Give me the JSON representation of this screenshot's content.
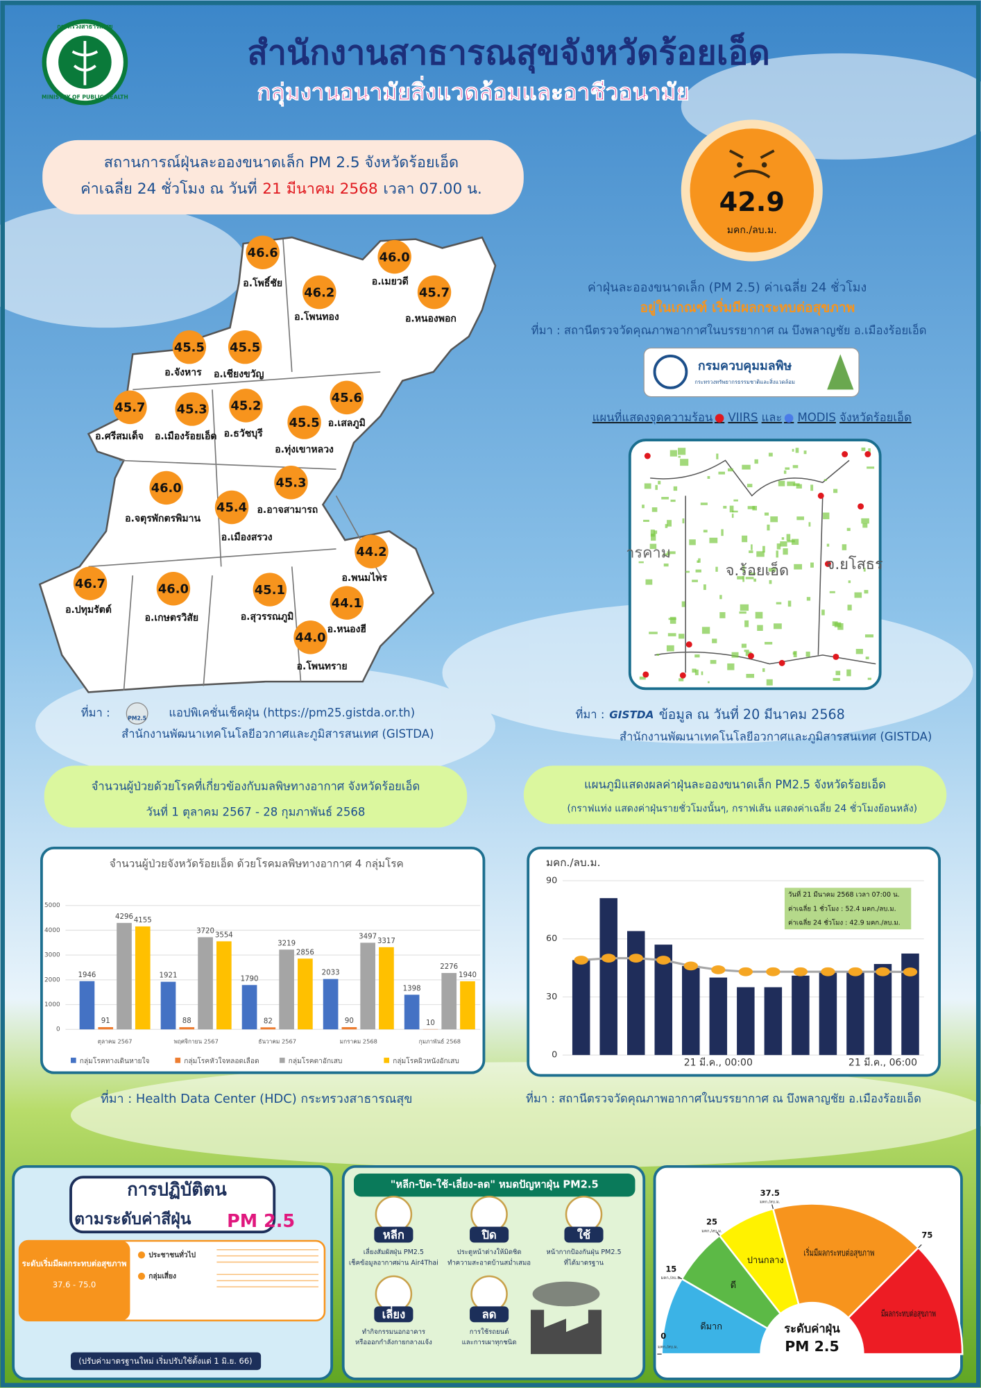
{
  "header": {
    "logo_top": "กระทรวงสาธารณสุข",
    "logo_bottom": "MINISTRY OF PUBLIC HEALTH",
    "title": "สำนักงานสาธารณสุขจังหวัดร้อยเอ็ด",
    "subtitle": "กลุ่มงานอนามัยสิ่งแวดล้อมและอาชีวอนามัย"
  },
  "situation": {
    "line1": "สถานการณ์ฝุ่นละอองขนาดเล็ก PM 2.5 จังหวัดร้อยเอ็ด",
    "line2": [
      "ค่าเฉลี่ย 24 ชั่วโมง ณ วันที่",
      "21 มีนาคม 2568",
      "เวลา 07.00 น."
    ]
  },
  "aqi": {
    "value": 42.9,
    "unit": "มคก./ลบ.ม.",
    "description": "ค่าฝุ่นละอองขนาดเล็ก (PM 2.5) ค่าเฉลี่ย 24 ชั่วโมง",
    "level": "อยู่ในเกณฑ์ เริ่มมีผลกระทบต่อสุขภาพ",
    "source": "ที่มา : สถานีตรวจวัดคุณภาพอากาศในบรรยากาศ ณ บึงพลาญชัย อ.เมืองร้อยเอ็ด",
    "agency": "กรมควบคุมมลพิษ",
    "agency_sub": "กระทรวงทรัพยากรธรรมชาติและสิ่งแวดล้อม"
  },
  "district_map": {
    "names": [
      "อ.โพธิ์ชัย",
      "อ.เมยวดี",
      "อ.โพนทอง",
      "อ.หนองพอก",
      "อ.จังหาร",
      "อ.เชียงขวัญ",
      "อ.ศรีสมเด็จ",
      "อ.เมืองร้อยเอ็ด",
      "อ.ธวัชบุรี",
      "อ.เสลภูมิ",
      "อ.ทุ่งเขาหลวง",
      "อ.อาจสามารถ",
      "อ.จตุรพักตรพิมาน",
      "อ.เมืองสรวง",
      "อ.พนมไพร",
      "อ.ปทุมรัตต์",
      "อ.เกษตรวิสัย",
      "อ.สุวรรณภูมิ",
      "อ.หนองฮี",
      "อ.โพนทราย"
    ],
    "values": [
      46.6,
      46,
      46.2,
      45.7,
      45.5,
      45.5,
      45.7,
      45.3,
      45.2,
      45.6,
      45.5,
      45.3,
      46,
      45.4,
      44.2,
      46.7,
      46,
      45.1,
      44.1,
      44
    ],
    "value_labels": [
      "46.6",
      "46.0",
      "46.2",
      "45.7",
      "45.5",
      "45.5",
      "45.7",
      "45.3",
      "45.2",
      "45.6",
      "45.5",
      "45.3",
      "46.0",
      "45.4",
      "44.2",
      "46.7",
      "46.0",
      "45.1",
      "44.1",
      "44.0"
    ],
    "source_label": "ที่มา :",
    "app_badge": "PM2.5",
    "source_app": "แอปพิเคชั่นเช็คฝุ่น (https://pm25.gistda.or.th)",
    "source_org": "สำนักงานพัฒนาเทคโนโลยีอวกาศและภูมิสารสนเทศ (GISTDA)"
  },
  "hotspot_map": {
    "title": [
      "แผนที่แสดงจุดความร้อน",
      "VIIRS",
      "และ",
      "MODIS",
      "จังหวัดร้อยเอ็ด"
    ],
    "labels": [
      "ารคาม",
      "จ.ร้อยเอ็ด",
      "จ.ยโสธร"
    ],
    "source_label": "ที่มา :",
    "source_logo": "GISTDA",
    "source_date": "ข้อมูล ณ วันที่ 20 มีนาคม 2568",
    "source_org": "สำนักงานพัฒนาเทคโนโลยีอวกาศและภูมิสารสนเทศ (GISTDA)"
  },
  "patients_section": {
    "heading": [
      "จำนวนผู้ป่วยด้วยโรคที่เกี่ยวข้องกับมลพิษทางอากาศ จังหวัดร้อยเอ็ด",
      "วันที่ 1 ตุลาคม 2567 - 28 กุมภาพันธ์ 2568"
    ],
    "source": "ที่มา :  Health Data Center (HDC) กระทรวงสาธารณสุข"
  },
  "pm_section": {
    "heading": [
      "แผนภูมิแสดงผลค่าฝุ่นละอองขนาดเล็ก PM2.5 จังหวัดร้อยเอ็ด",
      "(กราฟแท่ง แสดงค่าฝุ่นรายชั่วโมงนั้นๆ, กราฟเส้น แสดงค่าเฉลี่ย 24 ชั่วโมงย้อนหลัง)"
    ],
    "source": "ที่มา : สถานีตรวจวัดคุณภาพอากาศในบรรยากาศ ณ บึงพลาญชัย อ.เมืองร้อยเอ็ด"
  },
  "chart_data": [
    {
      "type": "bar",
      "title": "จำนวนผู้ป่วยจังหวัดร้อยเอ็ด ด้วยโรคมลพิษทางอากาศ 4 กลุ่มโรค",
      "categories": [
        "ตุลาคม 2567",
        "พฤศจิกายน 2567",
        "ธันวาคม 2567",
        "มกราคม 2568",
        "กุมภาพันธ์ 2568"
      ],
      "series": [
        {
          "name": "กลุ่มโรคทางเดินหายใจ",
          "color": "#4472c4",
          "values": [
            1946,
            1921,
            1790,
            2033,
            1398
          ]
        },
        {
          "name": "กลุ่มโรคหัวใจหลอดเลือด",
          "color": "#ed7d31",
          "values": [
            91,
            88,
            82,
            90,
            10
          ]
        },
        {
          "name": "กลุ่มโรคตาอักเสบ",
          "color": "#a5a5a5",
          "values": [
            4296,
            3720,
            3219,
            3497,
            2276
          ]
        },
        {
          "name": "กลุ่มโรคผิวหนังอักเสบ",
          "color": "#ffc000",
          "values": [
            4155,
            3554,
            2856,
            3317,
            1940
          ]
        }
      ],
      "ylim": [
        0,
        5000
      ],
      "yticks": [
        0,
        1000,
        2000,
        3000,
        4000,
        5000
      ],
      "grid": true,
      "legend": "bottom"
    },
    {
      "type": "combo",
      "y_label": "มคก./ลบ.ม.",
      "categories": [
        null,
        null,
        null,
        null,
        null,
        "21 มี.ค., 00:00",
        null,
        null,
        null,
        null,
        null,
        "21 มี.ค., 06:00",
        null
      ],
      "series": [
        {
          "mark": "bar",
          "color": "#1f2d5a",
          "values": [
            49,
            81,
            64,
            57,
            46,
            40,
            35,
            35,
            41,
            43,
            43,
            47,
            52.4
          ]
        },
        {
          "mark": "line",
          "color": "#a6a6a6",
          "marker_color": "#f5a623",
          "values": [
            49,
            50,
            50,
            49,
            46,
            44,
            43,
            43,
            43,
            43,
            43,
            43,
            42.9
          ]
        }
      ],
      "ylim": [
        0,
        90
      ],
      "yticks": [
        0,
        30,
        60,
        90
      ],
      "grid": true,
      "annotation": [
        "วันที่ 21  มีนาคม  2568  เวลา 07:00 น.",
        "ค่าเฉลี่ย 1 ชั่วโมง  : 52.4 มคก./ลบ.ม.",
        "ค่าเฉลี่ย 24 ชั่วโมง : 42.9 มคก./ลบ.ม."
      ]
    }
  ],
  "practice_panel": {
    "title": [
      "การปฏิบัติตน",
      "ตามระดับค่าสีฝุ่น",
      "PM 2.5"
    ],
    "level": "ระดับเริ่มมีผลกระทบต่อสุขภาพ",
    "range": "37.6 - 75.0",
    "groups": [
      "ประชาชนทั่วไป",
      "กลุ่มเสี่ยง"
    ],
    "note": "(ปรับค่ามาตรฐานใหม่ เริ่มปรับใช้ตั้งแต่ 1 มิ.ย. 66)"
  },
  "tips_panel": {
    "title": "\"หลีก-ปิด-ใช้-เลี่ยง-ลด\" หมดปัญหาฝุ่น PM2.5",
    "items": [
      {
        "word": "หลีก",
        "lines": [
          "เลี่ยงสัมผัสฝุ่น PM2.5",
          "เช็คข้อมูลอากาศผ่าน Air4Thai"
        ]
      },
      {
        "word": "ปิด",
        "lines": [
          "ประตูหน้าต่างให้มิดชิด",
          "ทำความสะอาดบ้านสม่ำเสมอ"
        ]
      },
      {
        "word": "ใช้",
        "lines": [
          "หน้ากากป้องกันฝุ่น PM2.5",
          "ที่ได้มาตรฐาน"
        ]
      },
      {
        "word": "เลี่ยง",
        "lines": [
          "ทำกิจกรรมนอกอาคาร",
          "หรือออกกำลังกายกลางแจ้ง"
        ]
      },
      {
        "word": "ลด",
        "lines": [
          "การใช้รถยนต์",
          "และการเผาทุกชนิด"
        ]
      }
    ]
  },
  "gauge": {
    "ticks": [
      0,
      15,
      25,
      37.5,
      75
    ],
    "unit": "มคก./ลบ.ม.",
    "levels": [
      {
        "label": "ดีมาก",
        "color": "#3bb3e6"
      },
      {
        "label": "ดี",
        "color": "#5cb946"
      },
      {
        "label": "ปานกลาง",
        "color": "#fff200"
      },
      {
        "label": "เริ่มมีผลกระทบต่อสุขภาพ",
        "color": "#f7941d"
      },
      {
        "label": "มีผลกระทบต่อสุขภาพ",
        "color": "#ed1c24"
      }
    ],
    "center": [
      "ระดับค่าฝุ่น",
      "PM 2.5"
    ]
  }
}
